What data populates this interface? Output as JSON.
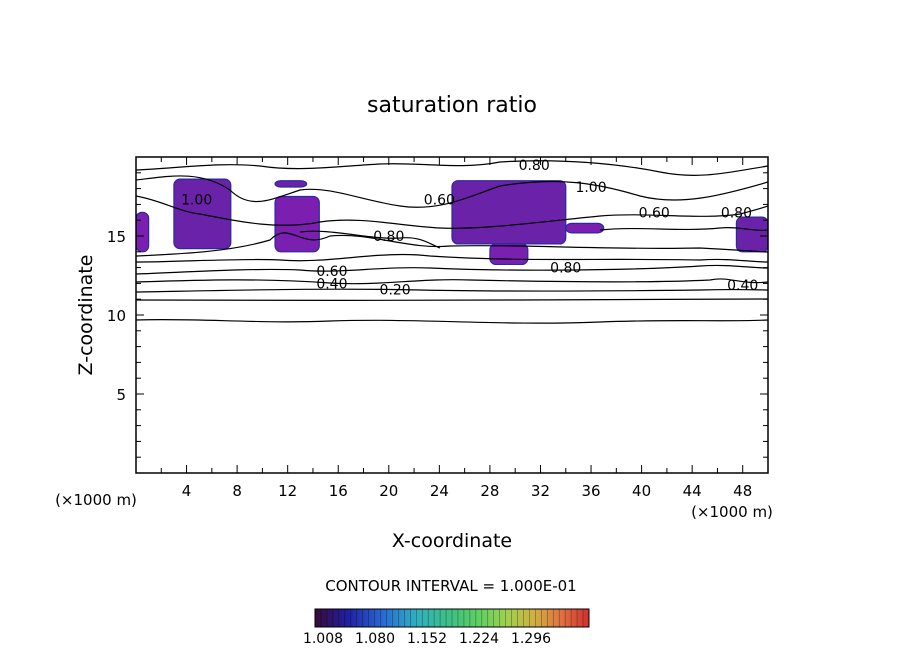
{
  "chart_data": {
    "type": "contour",
    "title": "saturation ratio",
    "xlabel": "X-coordinate",
    "ylabel": "Z-coordinate",
    "x_unit_label": "(×1000 m)",
    "z_unit_label": "(×1000 m)",
    "xlim": [
      0,
      50
    ],
    "ylim": [
      0,
      20
    ],
    "x_ticks": [
      "4",
      "8",
      "12",
      "16",
      "20",
      "24",
      "28",
      "32",
      "36",
      "40",
      "44",
      "48"
    ],
    "y_ticks": [
      "5",
      "10",
      "15"
    ],
    "contour_interval_text": "CONTOUR INTERVAL = 1.000E-01",
    "contour_labels": [
      {
        "text": "0.80",
        "x": 31.5,
        "z": 19.5
      },
      {
        "text": "1.00",
        "x": 36.0,
        "z": 18.1
      },
      {
        "text": "1.00",
        "x": 4.8,
        "z": 17.3
      },
      {
        "text": "0.60",
        "x": 24.0,
        "z": 17.3
      },
      {
        "text": "0.60",
        "x": 41.0,
        "z": 16.5
      },
      {
        "text": "0.80",
        "x": 47.5,
        "z": 16.5
      },
      {
        "text": "0.80",
        "x": 20.0,
        "z": 15.0
      },
      {
        "text": "0.80",
        "x": 34.0,
        "z": 13.0
      },
      {
        "text": "0.60",
        "x": 15.5,
        "z": 12.8
      },
      {
        "text": "0.40",
        "x": 15.5,
        "z": 12.0
      },
      {
        "text": "0.20",
        "x": 20.5,
        "z": 11.6
      },
      {
        "text": "0.40",
        "x": 48.0,
        "z": 11.9
      }
    ],
    "shaded_regions": [
      {
        "x": [
          3.0,
          7.5
        ],
        "z": [
          14.2,
          18.6
        ]
      },
      {
        "x": [
          11.0,
          14.5
        ],
        "z": [
          14.0,
          17.5
        ]
      },
      {
        "x": [
          25.0,
          34.0
        ],
        "z": [
          14.5,
          18.5
        ]
      },
      {
        "x": [
          28.0,
          31.0
        ],
        "z": [
          13.2,
          14.5
        ]
      },
      {
        "x": [
          11.0,
          13.5
        ],
        "z": [
          18.1,
          18.5
        ]
      },
      {
        "x": [
          34.0,
          37.0
        ],
        "z": [
          15.2,
          15.8
        ]
      },
      {
        "x": [
          47.5,
          50.0
        ],
        "z": [
          14.0,
          16.2
        ]
      },
      {
        "x": [
          0.0,
          1.0
        ],
        "z": [
          14.0,
          16.5
        ]
      }
    ],
    "colorbar": {
      "ticks": [
        "1.008",
        "1.080",
        "1.152",
        "1.224",
        "1.296"
      ],
      "colors": [
        "#3a0a3a",
        "#2020a0",
        "#2a6ad0",
        "#30b0c0",
        "#40c080",
        "#60d060",
        "#a0d050",
        "#d0b040",
        "#e07040",
        "#d03030"
      ]
    }
  }
}
